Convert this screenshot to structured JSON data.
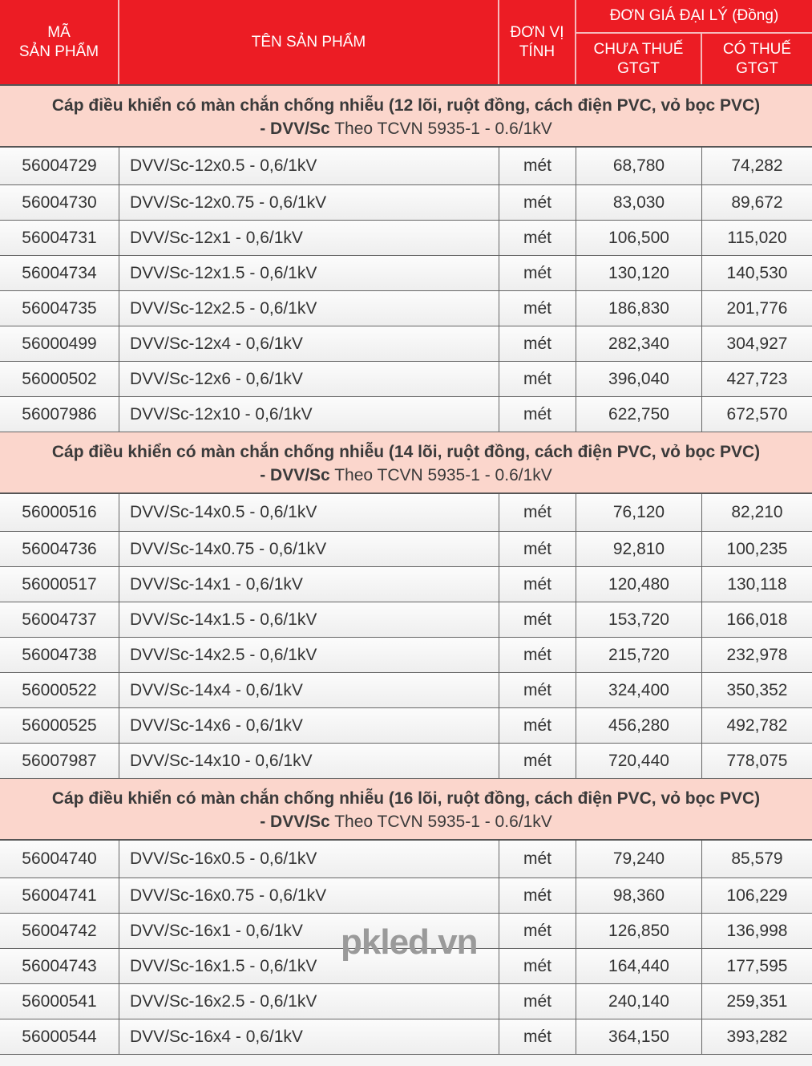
{
  "header": {
    "code": "MÃ\nSẢN PHẨM",
    "name": "TÊN SẢN PHẨM",
    "unit": "ĐƠN VỊ\nTÍNH",
    "price": "ĐƠN GIÁ ĐẠI LÝ (Đồng)",
    "pre_tax": "CHƯA THUẾ\nGTGT",
    "with_tax": "CÓ THUẾ\nGTGT"
  },
  "colors": {
    "header_bg": "#ec1c24",
    "section_bg": "#fbd6cc"
  },
  "watermark": "pkled.vn",
  "sections": [
    {
      "title": "Cáp điều khiển có màn chắn chống nhiễu (12 lõi, ruột đồng, cách điện PVC, vỏ bọc PVC)",
      "code": "- DVV/Sc",
      "standard": " Theo TCVN 5935-1 - 0.6/1kV",
      "rows": [
        [
          "56004729",
          "DVV/Sc-12x0.5 - 0,6/1kV",
          "mét",
          "68,780",
          "74,282"
        ],
        [
          "56004730",
          "DVV/Sc-12x0.75 - 0,6/1kV",
          "mét",
          "83,030",
          "89,672"
        ],
        [
          "56004731",
          "DVV/Sc-12x1 - 0,6/1kV",
          "mét",
          "106,500",
          "115,020"
        ],
        [
          "56004734",
          "DVV/Sc-12x1.5 - 0,6/1kV",
          "mét",
          "130,120",
          "140,530"
        ],
        [
          "56004735",
          "DVV/Sc-12x2.5 - 0,6/1kV",
          "mét",
          "186,830",
          "201,776"
        ],
        [
          "56000499",
          "DVV/Sc-12x4 - 0,6/1kV",
          "mét",
          "282,340",
          "304,927"
        ],
        [
          "56000502",
          "DVV/Sc-12x6 - 0,6/1kV",
          "mét",
          "396,040",
          "427,723"
        ],
        [
          "56007986",
          "DVV/Sc-12x10 - 0,6/1kV",
          "mét",
          "622,750",
          "672,570"
        ]
      ]
    },
    {
      "title": "Cáp điều khiển có màn chắn chống nhiễu (14 lõi, ruột đồng, cách điện PVC, vỏ bọc PVC)",
      "code": "- DVV/Sc",
      "standard": " Theo TCVN 5935-1 - 0.6/1kV",
      "rows": [
        [
          "56000516",
          "DVV/Sc-14x0.5 - 0,6/1kV",
          "mét",
          "76,120",
          "82,210"
        ],
        [
          "56004736",
          "DVV/Sc-14x0.75 - 0,6/1kV",
          "mét",
          "92,810",
          "100,235"
        ],
        [
          "56000517",
          "DVV/Sc-14x1 - 0,6/1kV",
          "mét",
          "120,480",
          "130,118"
        ],
        [
          "56004737",
          "DVV/Sc-14x1.5 - 0,6/1kV",
          "mét",
          "153,720",
          "166,018"
        ],
        [
          "56004738",
          "DVV/Sc-14x2.5 - 0,6/1kV",
          "mét",
          "215,720",
          "232,978"
        ],
        [
          "56000522",
          "DVV/Sc-14x4 - 0,6/1kV",
          "mét",
          "324,400",
          "350,352"
        ],
        [
          "56000525",
          "DVV/Sc-14x6 - 0,6/1kV",
          "mét",
          "456,280",
          "492,782"
        ],
        [
          "56007987",
          "DVV/Sc-14x10 - 0,6/1kV",
          "mét",
          "720,440",
          "778,075"
        ]
      ]
    },
    {
      "title": "Cáp điều khiển có màn chắn chống nhiễu (16 lõi, ruột đồng, cách điện PVC, vỏ bọc PVC)",
      "code": "- DVV/Sc",
      "standard": " Theo TCVN 5935-1 - 0.6/1kV",
      "rows": [
        [
          "56004740",
          "DVV/Sc-16x0.5 - 0,6/1kV",
          "mét",
          "79,240",
          "85,579"
        ],
        [
          "56004741",
          "DVV/Sc-16x0.75 - 0,6/1kV",
          "mét",
          "98,360",
          "106,229"
        ],
        [
          "56004742",
          "DVV/Sc-16x1 - 0,6/1kV",
          "mét",
          "126,850",
          "136,998"
        ],
        [
          "56004743",
          "DVV/Sc-16x1.5 - 0,6/1kV",
          "mét",
          "164,440",
          "177,595"
        ],
        [
          "56000541",
          "DVV/Sc-16x2.5 - 0,6/1kV",
          "mét",
          "240,140",
          "259,351"
        ],
        [
          "56000544",
          "DVV/Sc-16x4 - 0,6/1kV",
          "mét",
          "364,150",
          "393,282"
        ]
      ]
    }
  ]
}
